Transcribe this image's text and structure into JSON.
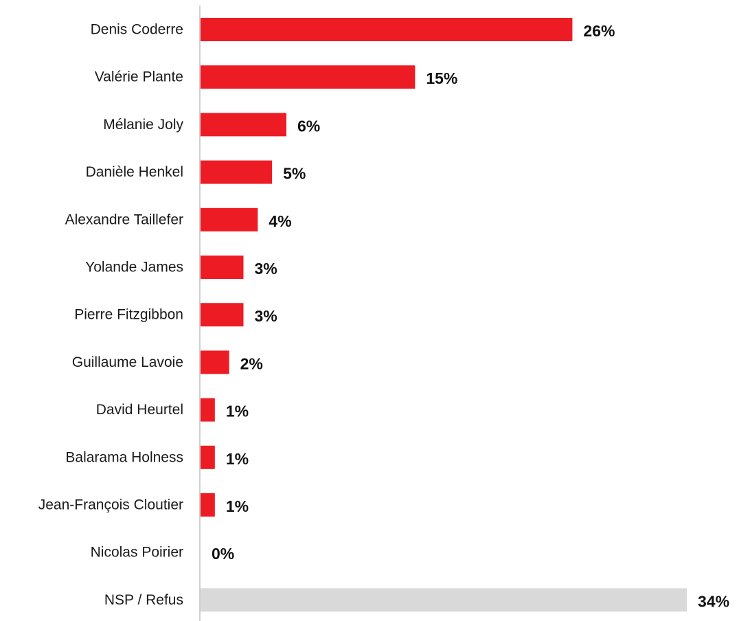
{
  "chart_data": {
    "type": "bar",
    "orientation": "horizontal",
    "categories": [
      "Denis Coderre",
      "Valérie Plante",
      "Mélanie Joly",
      "Danièle Henkel",
      "Alexandre Taillefer",
      "Yolande James",
      "Pierre Fitzgibbon",
      "Guillaume Lavoie",
      "David Heurtel",
      "Balarama Holness",
      "Jean-François Cloutier",
      "Nicolas Poirier",
      "NSP / Refus"
    ],
    "values": [
      26,
      15,
      6,
      5,
      4,
      3,
      3,
      2,
      1,
      1,
      1,
      0,
      34
    ],
    "value_labels": [
      "26%",
      "15%",
      "6%",
      "5%",
      "4%",
      "3%",
      "3%",
      "2%",
      "1%",
      "1%",
      "1%",
      "0%",
      "34%"
    ],
    "bar_colors": [
      "#ed1c24",
      "#ed1c24",
      "#ed1c24",
      "#ed1c24",
      "#ed1c24",
      "#ed1c24",
      "#ed1c24",
      "#ed1c24",
      "#ed1c24",
      "#ed1c24",
      "#ed1c24",
      "#ed1c24",
      "#d9d9d9"
    ],
    "title": "",
    "xlabel": "",
    "ylabel": "",
    "xlim": [
      0,
      34
    ],
    "grid": false,
    "legend": "none"
  }
}
